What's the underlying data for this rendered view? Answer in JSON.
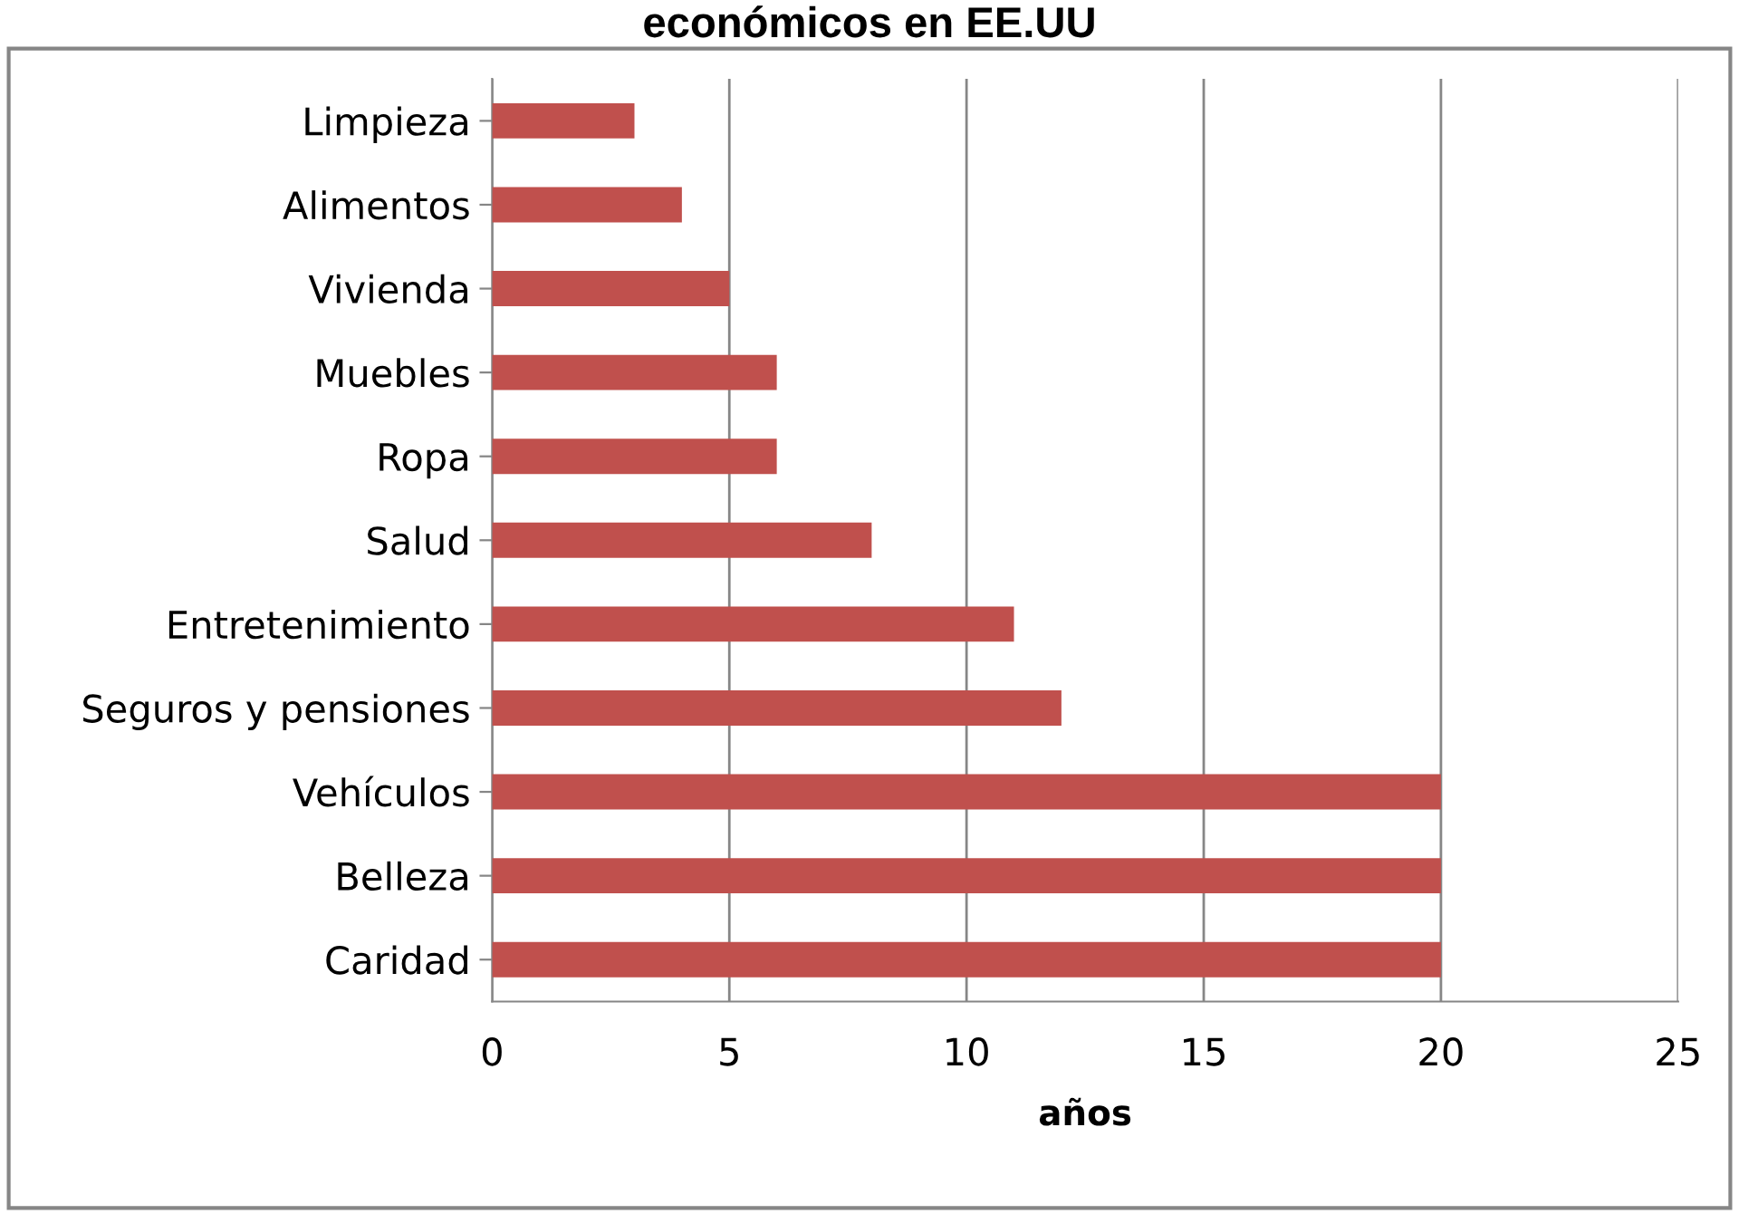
{
  "chart_data": {
    "type": "bar",
    "orientation": "horizontal",
    "title": "económicos en EE.UU",
    "xlabel": "años",
    "categories": [
      "Limpieza",
      "Alimentos",
      "Vivienda",
      "Muebles",
      "Ropa",
      "Salud",
      "Entretenimiento",
      "Seguros y pensiones",
      "Vehículos",
      "Belleza",
      "Caridad"
    ],
    "values": [
      3,
      4,
      5,
      6,
      6,
      8,
      11,
      12,
      20,
      20,
      20
    ],
    "color": "#c0504d",
    "xlim": [
      0,
      25
    ],
    "xticks": [
      0,
      5,
      10,
      15,
      20,
      25
    ],
    "grid": "x"
  }
}
